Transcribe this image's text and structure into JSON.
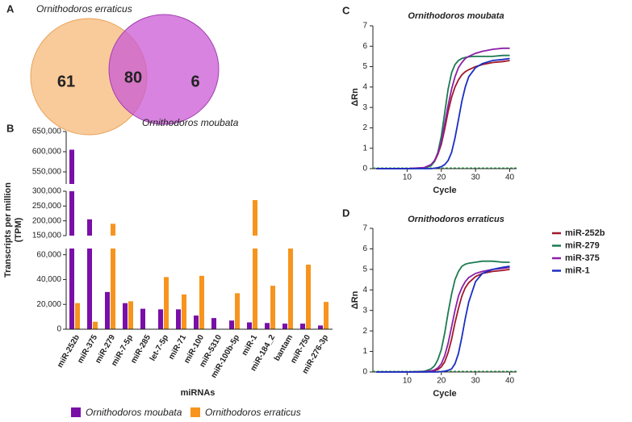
{
  "chart_data": [
    {
      "type": "venn",
      "label": "A",
      "sets": [
        {
          "name": "Ornithodoros erraticus",
          "color": "#f7b978"
        },
        {
          "name": "Ornithodoros moubata",
          "color": "#c95ad4"
        }
      ],
      "values": [
        61,
        80,
        6
      ]
    },
    {
      "type": "broken-bar",
      "label": "B",
      "ylabel": [
        "Transcripts per million",
        "(TPM)"
      ],
      "xlabel": "miRNAs",
      "categories": [
        "miR-252b",
        "miR-375",
        "miR-279",
        "miR-7-5p",
        "miR-285",
        "let-7-5p",
        "miR-71",
        "miR-100",
        "miR-5310",
        "miR-100b-5p",
        "miR-1",
        "miR-184_2",
        "bantam",
        "miR-750",
        "miR-276-3p"
      ],
      "series": [
        {
          "name": "Ornithodoros moubata",
          "color": "#7a0fa8",
          "values": [
            605000,
            205000,
            30000,
            21000,
            16500,
            16000,
            16000,
            11000,
            9000,
            7000,
            5500,
            5000,
            4500,
            4500,
            3000
          ]
        },
        {
          "name": "Ornithodoros erraticus",
          "color": "#f7941d",
          "values": [
            21000,
            6000,
            190000,
            22500,
            0,
            42000,
            28000,
            43000,
            0,
            29000,
            270000,
            35000,
            65000,
            52000,
            22000
          ]
        }
      ],
      "segments": [
        {
          "ylim": [
            0,
            65000
          ],
          "yticks": [
            0,
            {
              "value": 20000,
              "label": "20,000"
            },
            {
              "value": 40000,
              "label": "40,000"
            },
            {
              "value": 60000,
              "label": "60,000"
            }
          ]
        },
        {
          "ylim": [
            150000,
            300000
          ],
          "yticks": [
            {
              "value": 150000,
              "label": "150,000"
            },
            {
              "value": 200000,
              "label": "200,000"
            },
            {
              "value": 250000,
              "label": "250,000"
            },
            {
              "value": 300000,
              "label": "300,000"
            }
          ]
        },
        {
          "ylim": [
            520000,
            650000
          ],
          "yticks": [
            {
              "value": 550000,
              "label": "550,000"
            },
            {
              "value": 600000,
              "label": "600,000"
            },
            {
              "value": 650000,
              "label": "650,000"
            }
          ]
        }
      ]
    },
    {
      "type": "line",
      "label": "C",
      "title": "Ornithodoros moubata",
      "xlabel": "Cycle",
      "ylabel": "ΔRn",
      "xlim": [
        0,
        42
      ],
      "ylim": [
        0,
        7
      ],
      "xticks": [
        10,
        20,
        30,
        40
      ],
      "yticks": [
        0,
        1,
        2,
        3,
        4,
        5,
        6,
        7
      ],
      "x": [
        1,
        10,
        15,
        17,
        18,
        19,
        20,
        21,
        22,
        23,
        24,
        25,
        26,
        27,
        28,
        30,
        32,
        35,
        38,
        40
      ],
      "series": [
        {
          "name": "miR-252b",
          "color": "#a3172b",
          "values": [
            0,
            0,
            0.04,
            0.18,
            0.35,
            0.7,
            1.2,
            1.95,
            2.8,
            3.5,
            4.0,
            4.35,
            4.6,
            4.75,
            4.85,
            5.0,
            5.1,
            5.2,
            5.25,
            5.3
          ]
        },
        {
          "name": "miR-279",
          "color": "#1d7a52",
          "values": [
            0,
            0,
            0.02,
            0.14,
            0.35,
            0.8,
            1.6,
            2.75,
            3.9,
            4.7,
            5.1,
            5.3,
            5.4,
            5.45,
            5.48,
            5.5,
            5.5,
            5.5,
            5.55,
            5.55
          ]
        },
        {
          "name": "miR-375",
          "color": "#8c1fa8",
          "values": [
            0,
            0,
            0.05,
            0.2,
            0.4,
            0.75,
            1.3,
            2.2,
            3.1,
            3.9,
            4.5,
            4.95,
            5.2,
            5.4,
            5.5,
            5.65,
            5.75,
            5.85,
            5.9,
            5.9
          ]
        },
        {
          "name": "miR-1",
          "color": "#1a2ec2",
          "values": [
            0,
            0,
            0,
            0,
            0.02,
            0.05,
            0.1,
            0.2,
            0.4,
            0.8,
            1.5,
            2.4,
            3.3,
            4.0,
            4.5,
            4.95,
            5.15,
            5.3,
            5.35,
            5.4
          ]
        }
      ]
    },
    {
      "type": "line",
      "label": "D",
      "title": "Ornithodoros erraticus",
      "xlabel": "Cycle",
      "ylabel": "ΔRn",
      "xlim": [
        0,
        42
      ],
      "ylim": [
        0,
        7
      ],
      "xticks": [
        10,
        20,
        30,
        40
      ],
      "yticks": [
        0,
        1,
        2,
        3,
        4,
        5,
        6,
        7
      ],
      "x": [
        1,
        10,
        15,
        17,
        18,
        19,
        20,
        21,
        22,
        23,
        24,
        25,
        26,
        27,
        28,
        30,
        32,
        35,
        38,
        40
      ],
      "series": [
        {
          "color": "#a3172b",
          "values": [
            0,
            0,
            0,
            0.03,
            0.06,
            0.12,
            0.25,
            0.5,
            0.95,
            1.6,
            2.4,
            3.1,
            3.7,
            4.1,
            4.35,
            4.65,
            4.8,
            4.9,
            4.95,
            5.0
          ]
        },
        {
          "color": "#1d7a52",
          "values": [
            0,
            0,
            0.03,
            0.15,
            0.3,
            0.6,
            1.1,
            1.9,
            2.9,
            3.8,
            4.5,
            4.9,
            5.15,
            5.25,
            5.3,
            5.35,
            5.4,
            5.4,
            5.35,
            5.35
          ]
        },
        {
          "color": "#8c1fa8",
          "values": [
            0,
            0,
            0.01,
            0.05,
            0.1,
            0.2,
            0.4,
            0.8,
            1.4,
            2.2,
            3.0,
            3.7,
            4.1,
            4.4,
            4.6,
            4.8,
            4.9,
            5.0,
            5.05,
            5.1
          ]
        },
        {
          "color": "#1a2ec2",
          "values": [
            0,
            0,
            0,
            0,
            0,
            0,
            0.02,
            0.04,
            0.08,
            0.15,
            0.4,
            0.9,
            1.7,
            2.6,
            3.4,
            4.4,
            4.8,
            5.0,
            5.1,
            5.15
          ]
        }
      ]
    }
  ]
}
